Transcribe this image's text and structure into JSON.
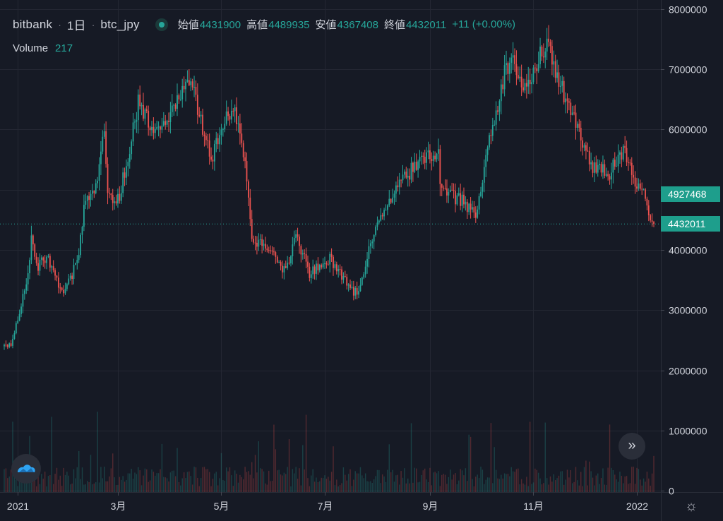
{
  "header": {
    "exchange": "bitbank",
    "interval": "1日",
    "symbol": "btc_jpy",
    "sep": "·"
  },
  "ohlc": {
    "open_label": "始値",
    "open": "4431900",
    "high_label": "高値",
    "high": "4489935",
    "low_label": "安値",
    "low": "4367408",
    "close_label": "終値",
    "close": "4432011",
    "change": "+11 (+0.00%)"
  },
  "volume": {
    "label": "Volume",
    "value": "217"
  },
  "price_tags": {
    "upper": "4927468",
    "current": "4432011"
  },
  "controls": {
    "scroll_glyph": "»",
    "settings_glyph": "☼"
  },
  "colors": {
    "up": "#26a69a",
    "down": "#ef5350",
    "background": "#161a25",
    "grid": "#242733"
  },
  "chart_data": {
    "type": "candlestick",
    "y_axis": {
      "ticks": [
        0,
        1000000,
        2000000,
        3000000,
        4000000,
        5000000,
        6000000,
        7000000,
        8000000
      ],
      "tick_labels": [
        "0",
        "1000000",
        "2000000",
        "3000000",
        "4000000",
        "5000000",
        "6000000",
        "7000000",
        "8000000"
      ],
      "range": [
        -20000,
        8150000
      ]
    },
    "x_axis": {
      "tick_labels": [
        "2021",
        "3月",
        "5月",
        "7月",
        "9月",
        "11月",
        "2022"
      ],
      "tick_dates": [
        "2021-01-01",
        "2021-03-01",
        "2021-05-01",
        "2021-07-01",
        "2021-09-01",
        "2021-11-01",
        "2022-01-01"
      ],
      "range": [
        "2020-12-24",
        "2022-01-11"
      ]
    },
    "anchor_closes": [
      [
        "2020-12-24",
        2400000
      ],
      [
        "2020-12-28",
        2450000
      ],
      [
        "2021-01-02",
        2950000
      ],
      [
        "2021-01-06",
        3450000
      ],
      [
        "2021-01-09",
        4150000
      ],
      [
        "2021-01-12",
        3700000
      ],
      [
        "2021-01-18",
        3900000
      ],
      [
        "2021-01-27",
        3300000
      ],
      [
        "2021-02-01",
        3500000
      ],
      [
        "2021-02-06",
        3950000
      ],
      [
        "2021-02-09",
        4700000
      ],
      [
        "2021-02-16",
        5000000
      ],
      [
        "2021-02-21",
        5950000
      ],
      [
        "2021-02-23",
        5000000
      ],
      [
        "2021-02-28",
        4700000
      ],
      [
        "2021-03-06",
        5400000
      ],
      [
        "2021-03-13",
        6450000
      ],
      [
        "2021-03-23",
        5950000
      ],
      [
        "2021-04-01",
        6300000
      ],
      [
        "2021-04-13",
        6850000
      ],
      [
        "2021-04-18",
        6200000
      ],
      [
        "2021-04-25",
        5500000
      ],
      [
        "2021-05-04",
        6250000
      ],
      [
        "2021-05-11",
        6200000
      ],
      [
        "2021-05-16",
        5200000
      ],
      [
        "2021-05-19",
        4200000
      ],
      [
        "2021-05-27",
        4050000
      ],
      [
        "2021-06-08",
        3650000
      ],
      [
        "2021-06-14",
        4250000
      ],
      [
        "2021-06-22",
        3600000
      ],
      [
        "2021-07-04",
        3850000
      ],
      [
        "2021-07-20",
        3250000
      ],
      [
        "2021-07-31",
        4400000
      ],
      [
        "2021-08-14",
        5100000
      ],
      [
        "2021-08-22",
        5350000
      ],
      [
        "2021-09-06",
        5650000
      ],
      [
        "2021-09-07",
        5000000
      ],
      [
        "2021-09-21",
        4800000
      ],
      [
        "2021-09-28",
        4600000
      ],
      [
        "2021-10-06",
        5850000
      ],
      [
        "2021-10-15",
        6900000
      ],
      [
        "2021-10-20",
        7200000
      ],
      [
        "2021-10-27",
        6700000
      ],
      [
        "2021-11-09",
        7450000
      ],
      [
        "2021-11-18",
        6650000
      ],
      [
        "2021-11-26",
        6150000
      ],
      [
        "2021-12-04",
        5450000
      ],
      [
        "2021-12-15",
        5250000
      ],
      [
        "2021-12-24",
        5650000
      ],
      [
        "2021-12-31",
        5150000
      ],
      [
        "2022-01-05",
        4950000
      ],
      [
        "2022-01-11",
        4432011
      ]
    ],
    "highlighted_levels": [
      4927468,
      4432011
    ],
    "volume_label": "Volume",
    "volume_last": 217,
    "grid": true
  }
}
